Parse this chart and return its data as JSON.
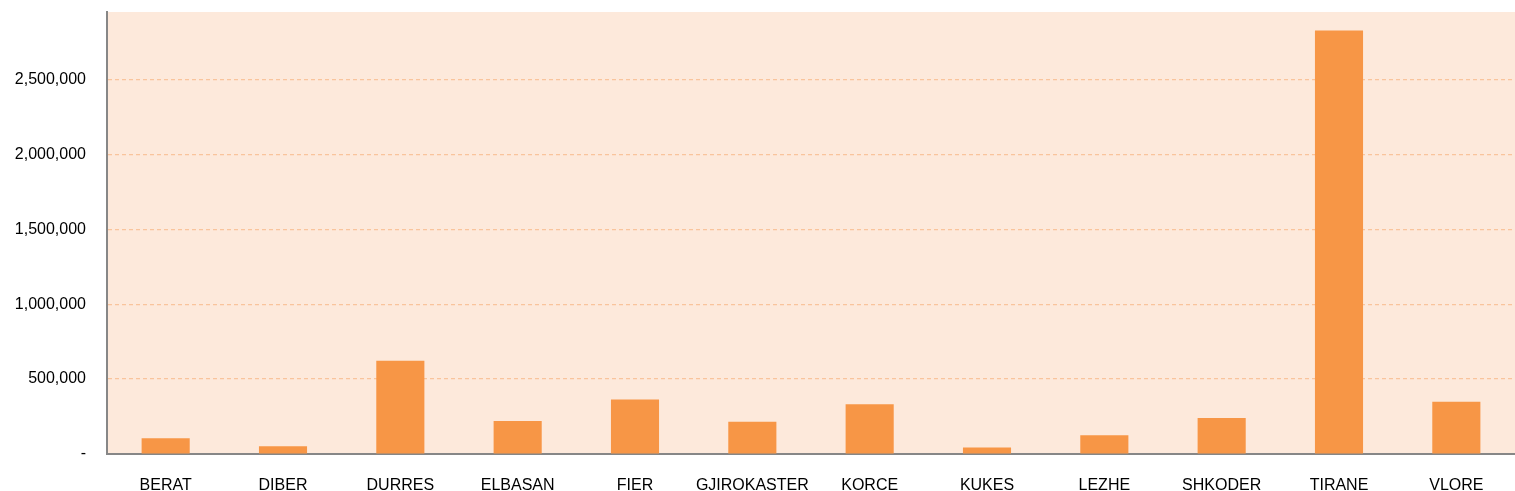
{
  "chart_data": {
    "type": "bar",
    "categories": [
      "BERAT",
      "DIBER",
      "DURRES",
      "ELBASAN",
      "FIER",
      "GJIROKASTER",
      "KORCE",
      "KUKES",
      "LEZHE",
      "SHKODER",
      "TIRANE",
      "VLORE"
    ],
    "values": [
      105000,
      51000,
      622000,
      221000,
      364000,
      215000,
      332000,
      43000,
      125000,
      241000,
      2827000,
      348000
    ],
    "color": "#f79646",
    "ylim": [
      0,
      2950000
    ],
    "yticks": [
      {
        "value": 0,
        "label": "-"
      },
      {
        "value": 500000,
        "label": "500,000"
      },
      {
        "value": 1000000,
        "label": "1,000,000"
      },
      {
        "value": 1500000,
        "label": "1,500,000"
      },
      {
        "value": 2000000,
        "label": "2,000,000"
      },
      {
        "value": 2500000,
        "label": "2,500,000"
      }
    ],
    "grid": "y"
  }
}
